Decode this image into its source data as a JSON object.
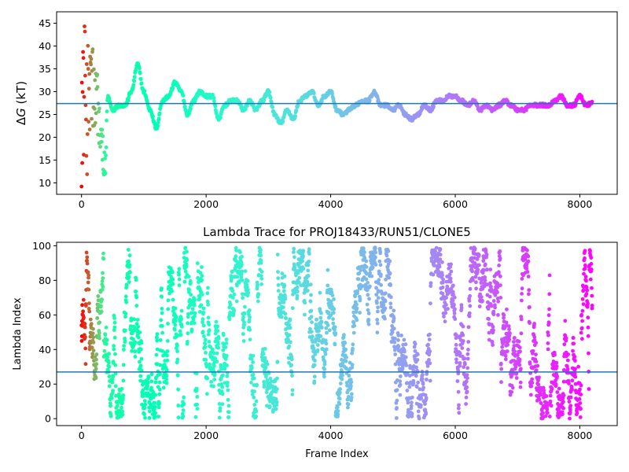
{
  "chart_data": [
    {
      "type": "scatter",
      "title": "",
      "xlabel": "",
      "ylabel_prefix": "Δ",
      "ylabel_symbol": "G",
      "ylabel_suffix": " (kT)",
      "xlim": [
        -400,
        8600
      ],
      "ylim": [
        7.5,
        47.5
      ],
      "xticks": [
        0,
        2000,
        4000,
        6000,
        8000
      ],
      "yticks": [
        10,
        15,
        20,
        25,
        30,
        35,
        40,
        45
      ],
      "hline": {
        "y": 27.4,
        "color": "#1f77b4"
      },
      "colormap": "rainbow",
      "frames": 8200,
      "colorscale_note": "points colored from red (early frames) to violet (late frames)",
      "trace_keypoints": [
        [
          0,
          27
        ],
        [
          40,
          30
        ],
        [
          80,
          26
        ],
        [
          150,
          31
        ],
        [
          250,
          27
        ],
        [
          330,
          18
        ],
        [
          380,
          13
        ],
        [
          420,
          29
        ],
        [
          500,
          26
        ],
        [
          600,
          27
        ],
        [
          700,
          27
        ],
        [
          800,
          30
        ],
        [
          900,
          36
        ],
        [
          1000,
          30
        ],
        [
          1100,
          26
        ],
        [
          1200,
          22
        ],
        [
          1300,
          28
        ],
        [
          1400,
          29
        ],
        [
          1500,
          32
        ],
        [
          1600,
          30
        ],
        [
          1700,
          25
        ],
        [
          1800,
          28
        ],
        [
          1900,
          30
        ],
        [
          2000,
          29
        ],
        [
          2100,
          29
        ],
        [
          2200,
          24
        ],
        [
          2300,
          27
        ],
        [
          2400,
          28
        ],
        [
          2500,
          28
        ],
        [
          2600,
          26
        ],
        [
          2700,
          28
        ],
        [
          2800,
          26
        ],
        [
          2900,
          28
        ],
        [
          3000,
          30
        ],
        [
          3100,
          25
        ],
        [
          3200,
          23
        ],
        [
          3300,
          26
        ],
        [
          3400,
          24
        ],
        [
          3500,
          28
        ],
        [
          3600,
          29
        ],
        [
          3700,
          30
        ],
        [
          3800,
          27
        ],
        [
          3900,
          29
        ],
        [
          4000,
          30
        ],
        [
          4100,
          26
        ],
        [
          4200,
          25
        ],
        [
          4300,
          26
        ],
        [
          4400,
          27
        ],
        [
          4500,
          28
        ],
        [
          4600,
          28
        ],
        [
          4700,
          30
        ],
        [
          4800,
          27
        ],
        [
          4900,
          27
        ],
        [
          5000,
          26
        ],
        [
          5100,
          27
        ],
        [
          5200,
          25
        ],
        [
          5300,
          24
        ],
        [
          5400,
          25
        ],
        [
          5500,
          27
        ],
        [
          5600,
          26
        ],
        [
          5700,
          28
        ],
        [
          5800,
          28
        ],
        [
          5900,
          29
        ],
        [
          6000,
          29
        ],
        [
          6100,
          28
        ],
        [
          6200,
          27
        ],
        [
          6300,
          28
        ],
        [
          6400,
          26
        ],
        [
          6500,
          27
        ],
        [
          6600,
          26
        ],
        [
          6700,
          27
        ],
        [
          6800,
          28
        ],
        [
          6900,
          27
        ],
        [
          7000,
          26
        ],
        [
          7100,
          26
        ],
        [
          7200,
          27
        ],
        [
          7300,
          27
        ],
        [
          7400,
          27
        ],
        [
          7500,
          27
        ],
        [
          7600,
          28
        ],
        [
          7700,
          29
        ],
        [
          7800,
          27
        ],
        [
          7900,
          27
        ],
        [
          8000,
          29
        ],
        [
          8100,
          27
        ],
        [
          8200,
          27.5
        ]
      ],
      "early_scatter_spread": {
        "x_range": [
          0,
          450
        ],
        "y_range": [
          8,
          45
        ]
      }
    },
    {
      "type": "scatter",
      "title": "Lambda Trace for PROJ18433/RUN51/CLONE5",
      "xlabel": "Frame Index",
      "ylabel": "Lambda Index",
      "xlim": [
        -400,
        8600
      ],
      "ylim": [
        -4,
        102
      ],
      "xticks": [
        0,
        2000,
        4000,
        6000,
        8000
      ],
      "yticks": [
        0,
        20,
        40,
        60,
        80,
        100
      ],
      "hline": {
        "y": 27,
        "color": "#1f77b4"
      },
      "colormap": "rainbow",
      "frames": 8200,
      "lambda_range": [
        0,
        99
      ]
    }
  ]
}
